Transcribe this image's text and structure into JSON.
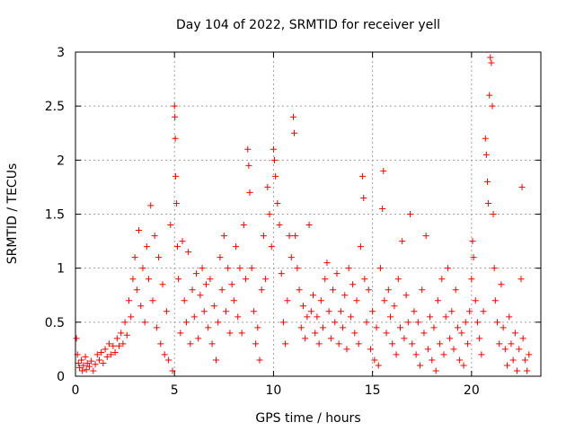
{
  "chart_data": {
    "type": "scatter",
    "title": "Day 104 of 2022, SRMTID for receiver yell",
    "xlabel": "GPS time / hours",
    "ylabel": "SRMTID / TECUs",
    "xlim": [
      0,
      23.5
    ],
    "ylim": [
      0,
      3
    ],
    "xticks": [
      0,
      5,
      10,
      15,
      20
    ],
    "xtick_labels": [
      "0",
      "5",
      "10",
      "15",
      "20"
    ],
    "yticks": [
      0,
      0.5,
      1,
      1.5,
      2,
      2.5,
      3
    ],
    "ytick_labels": [
      "0",
      "0.5",
      "1",
      "1.5",
      "2",
      "2.5",
      "3"
    ],
    "grid": true,
    "marker": "+",
    "color": "#ff0000",
    "series": [
      {
        "name": "SRMTID",
        "points": [
          [
            0.05,
            0.35
          ],
          [
            0.1,
            0.2
          ],
          [
            0.15,
            0.12
          ],
          [
            0.2,
            0.08
          ],
          [
            0.3,
            0.15
          ],
          [
            0.35,
            0.05
          ],
          [
            0.4,
            0.1
          ],
          [
            0.5,
            0.18
          ],
          [
            0.55,
            0.06
          ],
          [
            0.6,
            0.12
          ],
          [
            0.7,
            0.09
          ],
          [
            0.8,
            0.14
          ],
          [
            0.9,
            0.05
          ],
          [
            1.0,
            0.11
          ],
          [
            1.1,
            0.2
          ],
          [
            1.2,
            0.15
          ],
          [
            1.3,
            0.22
          ],
          [
            1.4,
            0.12
          ],
          [
            1.5,
            0.25
          ],
          [
            1.6,
            0.18
          ],
          [
            1.7,
            0.3
          ],
          [
            1.8,
            0.2
          ],
          [
            1.9,
            0.28
          ],
          [
            2.0,
            0.22
          ],
          [
            2.1,
            0.35
          ],
          [
            2.2,
            0.28
          ],
          [
            2.3,
            0.4
          ],
          [
            2.4,
            0.3
          ],
          [
            2.5,
            0.5
          ],
          [
            2.6,
            0.38
          ],
          [
            2.7,
            0.7
          ],
          [
            2.8,
            0.55
          ],
          [
            2.9,
            0.9
          ],
          [
            3.0,
            1.1
          ],
          [
            3.1,
            0.8
          ],
          [
            3.2,
            1.35
          ],
          [
            3.3,
            0.65
          ],
          [
            3.4,
            1.0
          ],
          [
            3.5,
            0.5
          ],
          [
            3.6,
            1.2
          ],
          [
            3.7,
            0.9
          ],
          [
            3.8,
            1.58
          ],
          [
            3.9,
            0.7
          ],
          [
            4.0,
            1.3
          ],
          [
            4.1,
            0.45
          ],
          [
            4.2,
            1.1
          ],
          [
            4.3,
            0.3
          ],
          [
            4.4,
            0.85
          ],
          [
            4.5,
            0.2
          ],
          [
            4.6,
            0.6
          ],
          [
            4.7,
            0.15
          ],
          [
            4.8,
            1.4
          ],
          [
            4.9,
            0.05
          ],
          [
            5.0,
            2.5
          ],
          [
            5.02,
            2.4
          ],
          [
            5.04,
            2.2
          ],
          [
            5.06,
            1.85
          ],
          [
            5.1,
            1.6
          ],
          [
            5.15,
            1.2
          ],
          [
            5.2,
            0.9
          ],
          [
            5.3,
            0.4
          ],
          [
            5.4,
            1.25
          ],
          [
            5.5,
            0.7
          ],
          [
            5.6,
            0.5
          ],
          [
            5.7,
            1.15
          ],
          [
            5.8,
            0.3
          ],
          [
            5.9,
            0.8
          ],
          [
            6.0,
            0.55
          ],
          [
            6.1,
            0.95
          ],
          [
            6.2,
            0.35
          ],
          [
            6.3,
            0.75
          ],
          [
            6.4,
            1.0
          ],
          [
            6.5,
            0.6
          ],
          [
            6.6,
            0.85
          ],
          [
            6.7,
            0.45
          ],
          [
            6.8,
            0.9
          ],
          [
            6.9,
            0.3
          ],
          [
            7.0,
            0.65
          ],
          [
            7.1,
            0.15
          ],
          [
            7.2,
            0.5
          ],
          [
            7.3,
            1.1
          ],
          [
            7.4,
            0.8
          ],
          [
            7.5,
            1.3
          ],
          [
            7.6,
            0.6
          ],
          [
            7.7,
            1.0
          ],
          [
            7.8,
            0.4
          ],
          [
            7.9,
            0.85
          ],
          [
            8.0,
            0.7
          ],
          [
            8.1,
            1.2
          ],
          [
            8.2,
            0.55
          ],
          [
            8.3,
            1.0
          ],
          [
            8.4,
            0.4
          ],
          [
            8.5,
            1.4
          ],
          [
            8.6,
            0.9
          ],
          [
            8.7,
            2.1
          ],
          [
            8.75,
            1.95
          ],
          [
            8.8,
            1.7
          ],
          [
            8.9,
            1.0
          ],
          [
            9.0,
            0.6
          ],
          [
            9.1,
            0.3
          ],
          [
            9.2,
            0.45
          ],
          [
            9.3,
            0.15
          ],
          [
            9.4,
            0.8
          ],
          [
            9.5,
            1.3
          ],
          [
            9.6,
            0.9
          ],
          [
            9.7,
            1.75
          ],
          [
            9.8,
            1.5
          ],
          [
            9.9,
            1.2
          ],
          [
            10.0,
            2.1
          ],
          [
            10.05,
            2.0
          ],
          [
            10.1,
            1.85
          ],
          [
            10.2,
            1.6
          ],
          [
            10.3,
            1.4
          ],
          [
            10.4,
            0.95
          ],
          [
            10.5,
            0.5
          ],
          [
            10.6,
            0.3
          ],
          [
            10.7,
            0.7
          ],
          [
            10.8,
            1.3
          ],
          [
            10.9,
            1.1
          ],
          [
            11.0,
            2.4
          ],
          [
            11.05,
            2.25
          ],
          [
            11.1,
            1.3
          ],
          [
            11.2,
            1.0
          ],
          [
            11.3,
            0.8
          ],
          [
            11.4,
            0.45
          ],
          [
            11.5,
            0.65
          ],
          [
            11.6,
            0.35
          ],
          [
            11.7,
            0.55
          ],
          [
            11.8,
            1.4
          ],
          [
            11.9,
            0.6
          ],
          [
            12.0,
            0.75
          ],
          [
            12.1,
            0.4
          ],
          [
            12.2,
            0.55
          ],
          [
            12.3,
            0.3
          ],
          [
            12.4,
            0.7
          ],
          [
            12.5,
            0.45
          ],
          [
            12.6,
            0.9
          ],
          [
            12.7,
            1.05
          ],
          [
            12.8,
            0.6
          ],
          [
            12.9,
            0.35
          ],
          [
            13.0,
            0.8
          ],
          [
            13.1,
            0.5
          ],
          [
            13.2,
            0.95
          ],
          [
            13.3,
            0.3
          ],
          [
            13.4,
            0.6
          ],
          [
            13.5,
            0.45
          ],
          [
            13.6,
            0.75
          ],
          [
            13.7,
            0.25
          ],
          [
            13.8,
            1.0
          ],
          [
            13.9,
            0.55
          ],
          [
            14.0,
            0.85
          ],
          [
            14.1,
            0.4
          ],
          [
            14.2,
            0.7
          ],
          [
            14.3,
            0.3
          ],
          [
            14.4,
            1.2
          ],
          [
            14.5,
            1.85
          ],
          [
            14.55,
            1.65
          ],
          [
            14.6,
            0.9
          ],
          [
            14.7,
            0.5
          ],
          [
            14.8,
            0.8
          ],
          [
            14.9,
            0.25
          ],
          [
            15.0,
            0.6
          ],
          [
            15.1,
            0.15
          ],
          [
            15.2,
            0.45
          ],
          [
            15.3,
            0.1
          ],
          [
            15.4,
            1.0
          ],
          [
            15.5,
            1.55
          ],
          [
            15.55,
            1.9
          ],
          [
            15.6,
            0.7
          ],
          [
            15.7,
            0.4
          ],
          [
            15.8,
            0.8
          ],
          [
            15.9,
            0.55
          ],
          [
            16.0,
            0.3
          ],
          [
            16.1,
            0.65
          ],
          [
            16.2,
            0.2
          ],
          [
            16.3,
            0.9
          ],
          [
            16.4,
            0.45
          ],
          [
            16.5,
            1.25
          ],
          [
            16.6,
            0.35
          ],
          [
            16.7,
            0.75
          ],
          [
            16.8,
            0.5
          ],
          [
            16.9,
            1.5
          ],
          [
            17.0,
            0.3
          ],
          [
            17.1,
            0.6
          ],
          [
            17.2,
            0.2
          ],
          [
            17.3,
            0.5
          ],
          [
            17.4,
            0.1
          ],
          [
            17.5,
            0.8
          ],
          [
            17.6,
            0.4
          ],
          [
            17.7,
            1.3
          ],
          [
            17.8,
            0.25
          ],
          [
            17.9,
            0.55
          ],
          [
            18.0,
            0.15
          ],
          [
            18.1,
            0.45
          ],
          [
            18.2,
            0.05
          ],
          [
            18.3,
            0.7
          ],
          [
            18.4,
            0.3
          ],
          [
            18.5,
            0.9
          ],
          [
            18.6,
            0.2
          ],
          [
            18.7,
            0.55
          ],
          [
            18.8,
            1.0
          ],
          [
            18.9,
            0.35
          ],
          [
            19.0,
            0.6
          ],
          [
            19.1,
            0.25
          ],
          [
            19.2,
            0.8
          ],
          [
            19.3,
            0.45
          ],
          [
            19.4,
            0.15
          ],
          [
            19.5,
            0.4
          ],
          [
            19.6,
            0.1
          ],
          [
            19.7,
            0.5
          ],
          [
            19.8,
            0.3
          ],
          [
            19.9,
            0.6
          ],
          [
            20.0,
            0.9
          ],
          [
            20.05,
            1.25
          ],
          [
            20.1,
            1.1
          ],
          [
            20.2,
            0.7
          ],
          [
            20.3,
            0.5
          ],
          [
            20.4,
            0.35
          ],
          [
            20.5,
            0.2
          ],
          [
            20.6,
            0.6
          ],
          [
            20.7,
            2.2
          ],
          [
            20.75,
            2.05
          ],
          [
            20.8,
            1.8
          ],
          [
            20.85,
            1.6
          ],
          [
            20.9,
            2.6
          ],
          [
            20.95,
            2.95
          ],
          [
            21.0,
            2.9
          ],
          [
            21.05,
            2.5
          ],
          [
            21.1,
            1.5
          ],
          [
            21.15,
            1.0
          ],
          [
            21.2,
            0.7
          ],
          [
            21.3,
            0.5
          ],
          [
            21.4,
            0.3
          ],
          [
            21.5,
            0.85
          ],
          [
            21.6,
            0.45
          ],
          [
            21.7,
            0.25
          ],
          [
            21.8,
            0.1
          ],
          [
            21.9,
            0.55
          ],
          [
            22.0,
            0.3
          ],
          [
            22.1,
            0.15
          ],
          [
            22.2,
            0.4
          ],
          [
            22.3,
            0.05
          ],
          [
            22.4,
            0.25
          ],
          [
            22.5,
            0.9
          ],
          [
            22.55,
            1.75
          ],
          [
            22.6,
            0.35
          ],
          [
            22.7,
            0.15
          ],
          [
            22.8,
            0.05
          ],
          [
            22.9,
            0.2
          ]
        ]
      }
    ]
  }
}
